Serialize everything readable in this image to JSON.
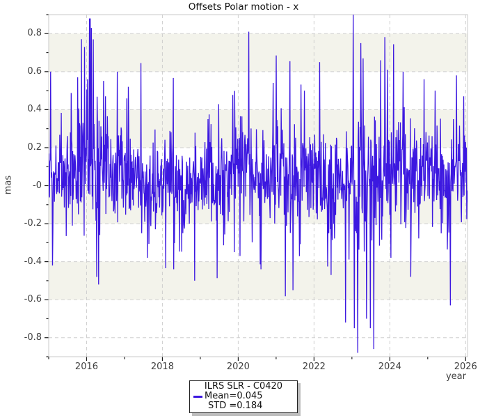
{
  "title": "Offsets Polar motion - x",
  "axes": {
    "x": {
      "label": "year",
      "min": 2015.0,
      "max": 2026.05,
      "major_ticks": [
        2016,
        2018,
        2020,
        2022,
        2024,
        2026
      ],
      "major_labels": [
        "2016",
        "2018",
        "2020",
        "2022",
        "2024",
        "2026"
      ],
      "minor_ticks": [
        2015,
        2017,
        2019,
        2021,
        2023,
        2025
      ]
    },
    "y": {
      "label": "mas",
      "min": -0.9,
      "max": 0.9,
      "major_ticks": [
        0.8,
        0.6,
        0.4,
        0.2,
        0.0,
        -0.2,
        -0.4,
        -0.6,
        -0.8
      ],
      "major_labels": [
        "0.8",
        "0.6",
        "0.4",
        "0.2",
        "-0",
        "-0.2",
        "-0.4",
        "-0.6",
        "-0.8"
      ],
      "minor_ticks": [
        0.9,
        0.7,
        0.5,
        0.3,
        0.1,
        -0.1,
        -0.3,
        -0.5,
        -0.7,
        -0.9
      ]
    }
  },
  "legend": {
    "title": "ILRS SLR - C0420",
    "mean_label": "Mean=0.045",
    "std_label": "STD =0.184"
  },
  "colors": {
    "data_line": "#3c18e0",
    "band_fill": "#f3f3eb",
    "gridline": "#cfcfcf",
    "zero_line": "#b0b0b0",
    "plot_border": "#c8c8c8",
    "tick_mark": "#1a1a1a",
    "label_text": "#404040",
    "legend_border": "#222222",
    "legend_shadow": "#bdbdbd"
  },
  "chart_data": {
    "type": "line",
    "series_name": "ILRS SLR - C0420",
    "title": "Offsets Polar motion - x",
    "xlabel": "year",
    "ylabel": "mas",
    "x_range": [
      2015.0,
      2026.05
    ],
    "ylim": [
      -0.9,
      0.9
    ],
    "mean": 0.045,
    "std": 0.184,
    "n_points": 1100,
    "seed": 1337,
    "grid": "dashed-major",
    "zebra_bands": [
      [
        0.6,
        0.8
      ],
      [
        0.2,
        0.4
      ],
      [
        -0.2,
        0.0
      ],
      [
        -0.6,
        -0.4
      ]
    ],
    "notable_points": [
      [
        2015.05,
        0.6
      ],
      [
        2015.1,
        -0.42
      ],
      [
        2015.76,
        0.57
      ],
      [
        2015.95,
        0.73
      ],
      [
        2016.08,
        0.88
      ],
      [
        2016.13,
        0.83
      ],
      [
        2016.18,
        0.77
      ],
      [
        2016.32,
        -0.52
      ],
      [
        2016.5,
        0.47
      ],
      [
        2016.81,
        0.6
      ],
      [
        2017.1,
        0.52
      ],
      [
        2017.43,
        0.645
      ],
      [
        2017.6,
        -0.38
      ],
      [
        2018.3,
        -0.44
      ],
      [
        2018.85,
        -0.5
      ],
      [
        2019.2,
        0.35
      ],
      [
        2019.9,
        -0.35
      ],
      [
        2020.28,
        0.81
      ],
      [
        2020.6,
        -0.44
      ],
      [
        2021.0,
        0.685
      ],
      [
        2021.36,
        0.655
      ],
      [
        2021.45,
        -0.55
      ],
      [
        2021.75,
        0.5
      ],
      [
        2022.15,
        0.65
      ],
      [
        2022.45,
        -0.47
      ],
      [
        2022.83,
        -0.72
      ],
      [
        2023.03,
        0.9
      ],
      [
        2023.06,
        -0.75
      ],
      [
        2023.23,
        0.75
      ],
      [
        2023.3,
        0.67
      ],
      [
        2023.49,
        -0.75
      ],
      [
        2023.58,
        -0.86
      ],
      [
        2023.76,
        0.66
      ],
      [
        2024.1,
        0.744
      ],
      [
        2024.35,
        0.6
      ],
      [
        2024.55,
        -0.48
      ],
      [
        2024.9,
        0.56
      ],
      [
        2025.2,
        0.5
      ],
      [
        2025.6,
        -0.63
      ],
      [
        2025.76,
        0.58
      ],
      [
        2025.95,
        0.47
      ]
    ]
  }
}
